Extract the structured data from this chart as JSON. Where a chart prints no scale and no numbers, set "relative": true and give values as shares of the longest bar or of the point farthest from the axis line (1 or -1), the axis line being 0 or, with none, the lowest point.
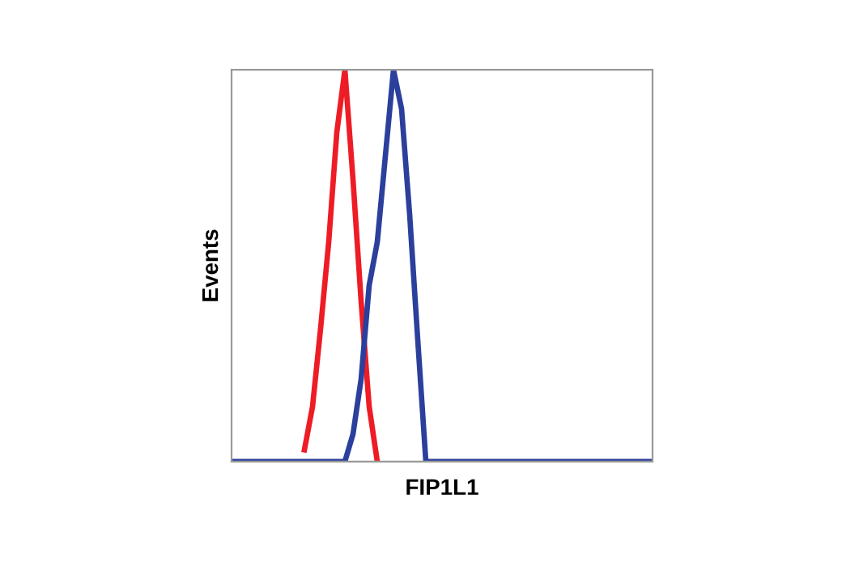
{
  "chart_data": {
    "type": "line",
    "relative": true,
    "xlabel": "FIP1L1",
    "ylabel": "Events",
    "grid": false,
    "marker": "none",
    "line_style": "solid",
    "categories": [
      null,
      null,
      null,
      null,
      null,
      null,
      null,
      null,
      null,
      null,
      null,
      null,
      null,
      null,
      null,
      null,
      null,
      null,
      null,
      null,
      null,
      null,
      null,
      null,
      null,
      null,
      null,
      null,
      null,
      null,
      null,
      null,
      null,
      null,
      null,
      null,
      null,
      null,
      null,
      null,
      null,
      null,
      null,
      null,
      null,
      null,
      null,
      null,
      null,
      null,
      null,
      null,
      null
    ],
    "series": [
      {
        "color": "#ee1c25",
        "values": [
          null,
          null,
          null,
          null,
          null,
          null,
          null,
          null,
          null,
          0.03,
          0.14,
          0.34,
          0.56,
          0.84,
          1,
          0.72,
          0.41,
          0.14,
          0,
          null,
          null,
          null,
          null,
          null,
          null,
          null,
          null,
          null,
          null,
          null,
          null,
          null,
          null,
          null,
          null,
          null,
          null,
          null,
          null,
          null,
          null,
          null,
          null,
          null,
          null,
          null,
          null,
          null,
          null,
          null,
          null,
          null,
          null
        ]
      },
      {
        "color": "#2b3f9c",
        "values": [
          0,
          0,
          0,
          0,
          0,
          0,
          0,
          0,
          0,
          0,
          0,
          0,
          0,
          0,
          0,
          0.07,
          0.21,
          0.45,
          0.56,
          0.78,
          1,
          0.9,
          0.63,
          0.31,
          0,
          0,
          0,
          0,
          0,
          0,
          0,
          0,
          0,
          0,
          0,
          0,
          0,
          0,
          0,
          0,
          0,
          0,
          0,
          0,
          0,
          0,
          0,
          0,
          0,
          0,
          0,
          0,
          0
        ]
      }
    ]
  }
}
